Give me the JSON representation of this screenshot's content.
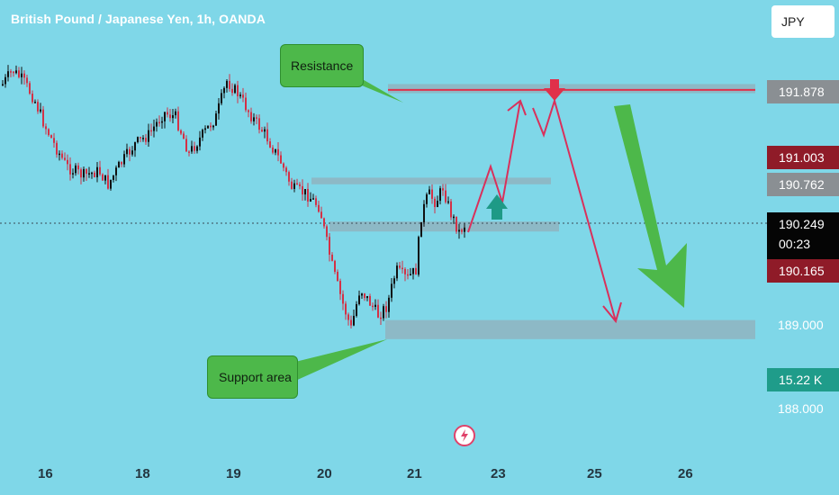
{
  "chart_data": {
    "type": "candlestick",
    "title": "British Pound / Japanese Yen, 1h, OANDA",
    "currency": "JPY",
    "x_ticks": [
      "16",
      "18",
      "19",
      "20",
      "21",
      "23",
      "25",
      "26"
    ],
    "y_ticks": [
      "188.000",
      "189.000"
    ],
    "price_tags": {
      "resistance": "191.878",
      "high": "191.003",
      "level_mid": "190.762",
      "current": "190.249",
      "countdown": "00:23",
      "low": "190.165",
      "volume": "15.22 K"
    },
    "ylim": [
      187.35,
      192.6
    ],
    "zones": [
      {
        "name": "resistance",
        "from": 191.82,
        "to": 191.93
      },
      {
        "name": "upper",
        "from": 190.72,
        "to": 190.8
      },
      {
        "name": "middle",
        "from": 190.15,
        "to": 190.27
      },
      {
        "name": "support",
        "from": 188.85,
        "to": 189.08
      }
    ],
    "annotations": [
      "Resistance",
      "Support area"
    ],
    "colors": {
      "background": "#7fd7e8",
      "up": "#111111",
      "down": "#d33146",
      "zone": "#8fb4c0",
      "projection": "#d9305b",
      "arrow_green": "#4db84a",
      "arrow_teal": "#1e9a86"
    }
  }
}
